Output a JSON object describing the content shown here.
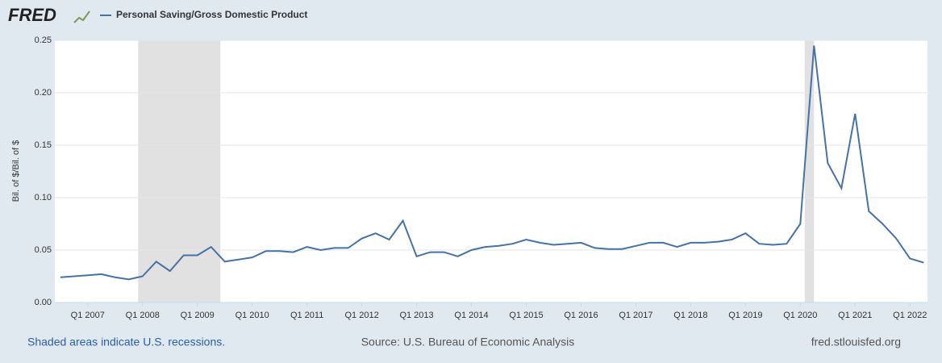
{
  "brand": "FRED",
  "chart_data": {
    "type": "line",
    "y_label": "Bil. of $/Bil. of $",
    "x": [
      2006.5,
      2006.75,
      2007,
      2007.25,
      2007.5,
      2007.75,
      2008,
      2008.25,
      2008.5,
      2008.75,
      2009,
      2009.25,
      2009.5,
      2009.75,
      2010,
      2010.25,
      2010.5,
      2010.75,
      2011,
      2011.25,
      2011.5,
      2011.75,
      2012,
      2012.25,
      2012.5,
      2012.75,
      2013,
      2013.25,
      2013.5,
      2013.75,
      2014,
      2014.25,
      2014.5,
      2014.75,
      2015,
      2015.25,
      2015.5,
      2015.75,
      2016,
      2016.25,
      2016.5,
      2016.75,
      2017,
      2017.25,
      2017.5,
      2017.75,
      2018,
      2018.25,
      2018.5,
      2018.75,
      2019,
      2019.25,
      2019.5,
      2019.75,
      2020,
      2020.25,
      2020.5,
      2020.75,
      2021,
      2021.25,
      2021.5,
      2021.75,
      2022,
      2022.25
    ],
    "series": [
      {
        "name": "Personal Saving/Gross Domestic Product",
        "color": "#4572a7",
        "values": [
          0.024,
          0.025,
          0.026,
          0.027,
          0.024,
          0.022,
          0.025,
          0.039,
          0.03,
          0.045,
          0.045,
          0.053,
          0.039,
          0.041,
          0.043,
          0.049,
          0.049,
          0.048,
          0.053,
          0.05,
          0.052,
          0.052,
          0.061,
          0.066,
          0.06,
          0.078,
          0.044,
          0.048,
          0.048,
          0.044,
          0.05,
          0.053,
          0.054,
          0.056,
          0.06,
          0.057,
          0.055,
          0.056,
          0.057,
          0.052,
          0.051,
          0.051,
          0.054,
          0.057,
          0.057,
          0.053,
          0.057,
          0.057,
          0.058,
          0.06,
          0.066,
          0.056,
          0.055,
          0.056,
          0.075,
          0.245,
          0.133,
          0.109,
          0.18,
          0.087,
          0.075,
          0.061,
          0.042,
          0.038
        ]
      }
    ],
    "recessions": [
      [
        2007.92,
        2009.42
      ],
      [
        2020.08,
        2020.25
      ]
    ],
    "recession_color": "#e1e1e1",
    "xlim": [
      2006.4,
      2022.32
    ],
    "xticks": [
      {
        "value": 2007,
        "label": "Q1 2007"
      },
      {
        "value": 2008,
        "label": "Q1 2008"
      },
      {
        "value": 2009,
        "label": "Q1 2009"
      },
      {
        "value": 2010,
        "label": "Q1 2010"
      },
      {
        "value": 2011,
        "label": "Q1 2011"
      },
      {
        "value": 2012,
        "label": "Q1 2012"
      },
      {
        "value": 2013,
        "label": "Q1 2013"
      },
      {
        "value": 2014,
        "label": "Q1 2014"
      },
      {
        "value": 2015,
        "label": "Q1 2015"
      },
      {
        "value": 2016,
        "label": "Q1 2016"
      },
      {
        "value": 2017,
        "label": "Q1 2017"
      },
      {
        "value": 2018,
        "label": "Q1 2018"
      },
      {
        "value": 2019,
        "label": "Q1 2019"
      },
      {
        "value": 2020,
        "label": "Q1 2020"
      },
      {
        "value": 2021,
        "label": "Q1 2021"
      },
      {
        "value": 2022,
        "label": "Q1 2022"
      }
    ],
    "ylim": [
      0,
      0.25
    ],
    "yticks": [
      {
        "value": 0,
        "label": "0.00"
      },
      {
        "value": 0.05,
        "label": "0.05"
      },
      {
        "value": 0.1,
        "label": "0.10"
      },
      {
        "value": 0.15,
        "label": "0.15"
      },
      {
        "value": 0.2,
        "label": "0.20"
      },
      {
        "value": 0.25,
        "label": "0.25"
      }
    ],
    "grid": true
  },
  "footer": {
    "left": "Shaded areas indicate U.S. recessions.",
    "center": "Source: U.S. Bureau of Economic Analysis",
    "right": "fred.stlouisfed.org"
  }
}
